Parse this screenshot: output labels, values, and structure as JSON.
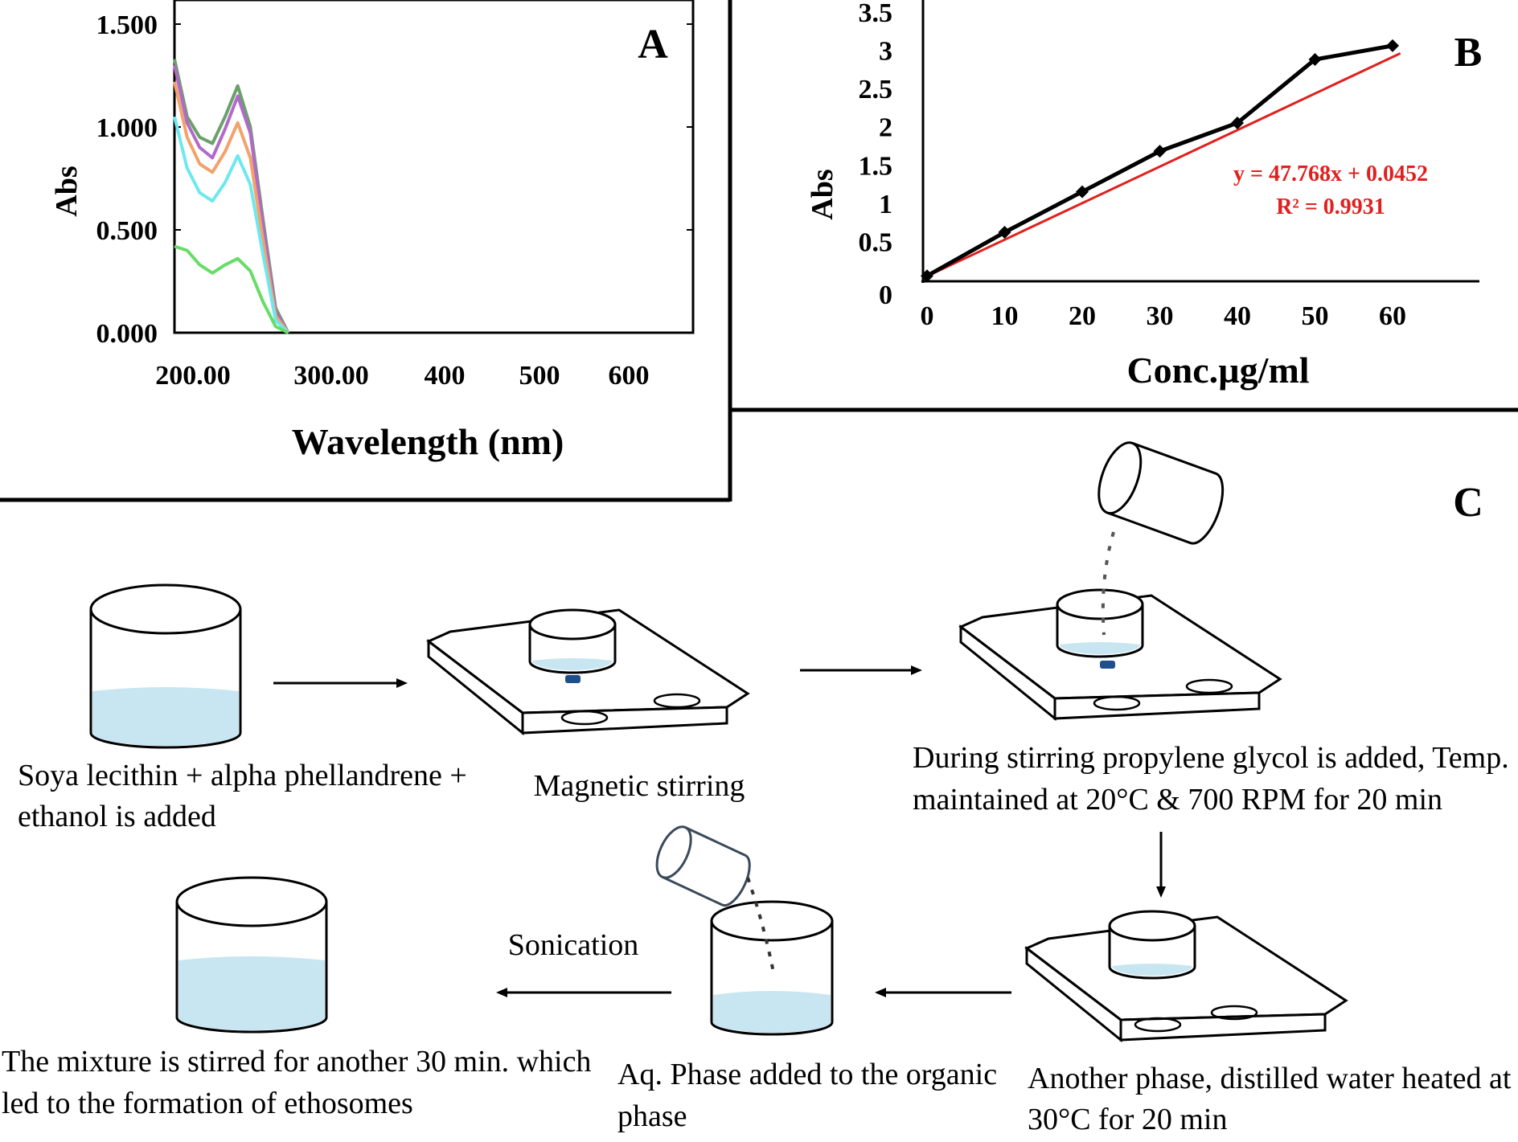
{
  "chart_data": [
    {
      "panel": "A",
      "type": "line",
      "xlabel": "Wavelength (nm)",
      "ylabel": "Abs",
      "x_ticks": [
        "200.00",
        "300.00",
        "400",
        "500",
        "600"
      ],
      "y_ticks": [
        "0.000",
        "0.500",
        "1.000",
        "1.500"
      ],
      "xlim": [
        190,
        600
      ],
      "ylim": [
        0,
        1.5
      ],
      "series": [
        {
          "color": "#6aa06a",
          "x": [
            190,
            200,
            210,
            220,
            230,
            240,
            250,
            260,
            270,
            280
          ],
          "values": [
            1.33,
            1.05,
            0.95,
            0.92,
            1.05,
            1.2,
            1.0,
            0.55,
            0.12,
            0.0
          ]
        },
        {
          "color": "#b06ac8",
          "x": [
            190,
            200,
            210,
            220,
            230,
            240,
            250,
            260,
            270,
            280
          ],
          "values": [
            1.3,
            1.02,
            0.9,
            0.85,
            0.99,
            1.15,
            0.97,
            0.52,
            0.1,
            0.0
          ]
        },
        {
          "color": "#f2a26a",
          "x": [
            190,
            200,
            210,
            220,
            230,
            240,
            250,
            260,
            270,
            280
          ],
          "values": [
            1.22,
            0.95,
            0.82,
            0.78,
            0.88,
            1.02,
            0.85,
            0.45,
            0.08,
            0.0
          ]
        },
        {
          "color": "#6ee8ee",
          "x": [
            190,
            200,
            210,
            220,
            230,
            240,
            250,
            260,
            270,
            280
          ],
          "values": [
            1.05,
            0.8,
            0.68,
            0.64,
            0.73,
            0.86,
            0.72,
            0.38,
            0.06,
            0.0
          ]
        },
        {
          "color": "#66dd66",
          "x": [
            190,
            200,
            210,
            220,
            230,
            240,
            250,
            260,
            270,
            280
          ],
          "values": [
            0.42,
            0.4,
            0.33,
            0.29,
            0.33,
            0.36,
            0.3,
            0.15,
            0.03,
            0.0
          ]
        }
      ]
    },
    {
      "panel": "B",
      "type": "line",
      "xlabel": "Conc.µg/ml",
      "ylabel": "Abs",
      "x_ticks": [
        "0",
        "10",
        "20",
        "30",
        "40",
        "50",
        "60"
      ],
      "y_ticks": [
        "0",
        "0.5",
        "1",
        "1.5",
        "2",
        "2.5",
        "3",
        "3.5"
      ],
      "xlim": [
        0,
        70
      ],
      "ylim": [
        0,
        3.5
      ],
      "series": [
        {
          "color": "#000000",
          "x": [
            0,
            10,
            20,
            30,
            40,
            50,
            60
          ],
          "values": [
            0.05,
            0.62,
            1.15,
            1.68,
            2.05,
            2.88,
            3.06
          ]
        }
      ],
      "trendline": {
        "color": "#e0201e",
        "x": [
          0,
          61
        ],
        "values": [
          0.0452,
          2.96
        ]
      },
      "annotation": [
        "y = 47.768x + 0.0452",
        "R² = 0.9931"
      ]
    }
  ],
  "panels": {
    "a_label": "A",
    "b_label": "B",
    "c_label": "C"
  },
  "process": {
    "step1": [
      "Soya lecithin + alpha phellandrene +",
      "ethanol is added"
    ],
    "step2": "Magnetic stirring",
    "step3": [
      "During stirring propylene glycol is added, Temp.",
      "maintained at 20°C & 700 RPM for 20 min"
    ],
    "step4": [
      "Another phase, distilled water heated at",
      "30°C for 20 min"
    ],
    "step5": [
      "Aq. Phase added to the organic",
      "phase"
    ],
    "step6_arrow_label": "Sonication",
    "step6": [
      "The mixture is stirred for another 30 min. which",
      "led to the formation of ethosomes"
    ]
  },
  "colors": {
    "liquid": "#c8e6f1",
    "trendline": "#e0201e",
    "stir_bar": "#1f4e8c"
  }
}
